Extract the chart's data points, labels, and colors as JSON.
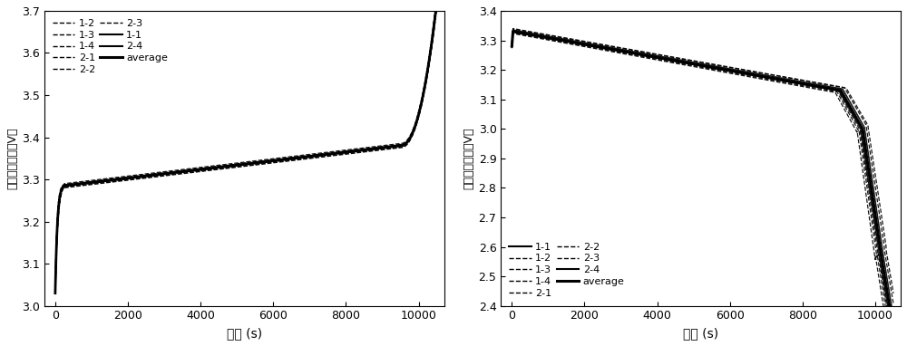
{
  "left": {
    "xlabel": "时间 (s)",
    "ylabel": "单体充电电压（V）",
    "xlim": [
      -300,
      10700
    ],
    "ylim": [
      3.0,
      3.7
    ],
    "yticks": [
      3.0,
      3.1,
      3.2,
      3.3,
      3.4,
      3.5,
      3.6,
      3.7
    ],
    "xticks": [
      0,
      2000,
      4000,
      6000,
      8000,
      10000
    ],
    "legend_dashed": [
      "1-2",
      "1-3",
      "1-4",
      "2-1",
      "2-2",
      "2-3"
    ],
    "legend_solid": [
      "1-1",
      "2-4"
    ],
    "legend_avg": "average"
  },
  "right": {
    "xlabel": "时间 (s)",
    "ylabel": "单体充电电压（V）",
    "xlim": [
      -300,
      10700
    ],
    "ylim": [
      2.4,
      3.4
    ],
    "yticks": [
      2.4,
      2.5,
      2.6,
      2.7,
      2.8,
      2.9,
      3.0,
      3.1,
      3.2,
      3.3,
      3.4
    ],
    "xticks": [
      0,
      2000,
      4000,
      6000,
      8000,
      10000
    ],
    "legend_solid1": "1-1",
    "legend_dashed": [
      "1-2",
      "1-3",
      "1-4",
      "2-1",
      "2-2",
      "2-3"
    ],
    "legend_solid2": "2-4",
    "legend_avg": "average"
  },
  "line_color": "#000000",
  "bg_color": "#ffffff"
}
